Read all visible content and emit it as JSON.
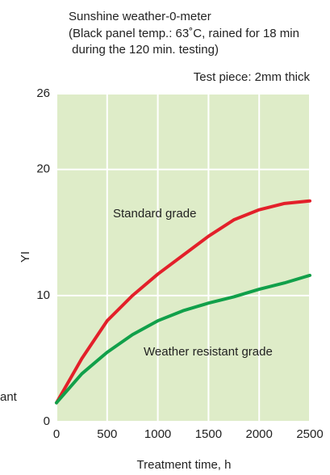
{
  "chart_data": {
    "type": "line",
    "title": [
      "Sunshine weather-0-meter",
      "(Black panel temp.: 63˚C, rained for 18 min",
      " during the 120 min. testing)"
    ],
    "subtitle": "Test piece: 2mm thick",
    "x_label": "Treatment time, h",
    "y_label": "YI",
    "annotations": [
      "ant"
    ],
    "x": [
      0,
      250,
      500,
      750,
      1000,
      1250,
      1500,
      1750,
      2000,
      2250,
      2500
    ],
    "series": [
      {
        "name": "Standard grade",
        "color": "#e3202a",
        "values": [
          1.5,
          5,
          8,
          10,
          11.7,
          13.2,
          14.7,
          16,
          16.8,
          17.3,
          17.5
        ]
      },
      {
        "name": "Weather resistant grade",
        "color": "#11a04a",
        "values": [
          1.5,
          3.8,
          5.5,
          6.9,
          8,
          8.8,
          9.4,
          9.9,
          10.5,
          11,
          11.6
        ]
      }
    ],
    "xlim": [
      0,
      2500
    ],
    "xticks": [
      0,
      500,
      1000,
      1500,
      2000,
      2500
    ],
    "ylim": [
      0,
      26
    ],
    "yticks": [
      0,
      10,
      20,
      26
    ],
    "grid": true,
    "background": "#deecc8"
  }
}
